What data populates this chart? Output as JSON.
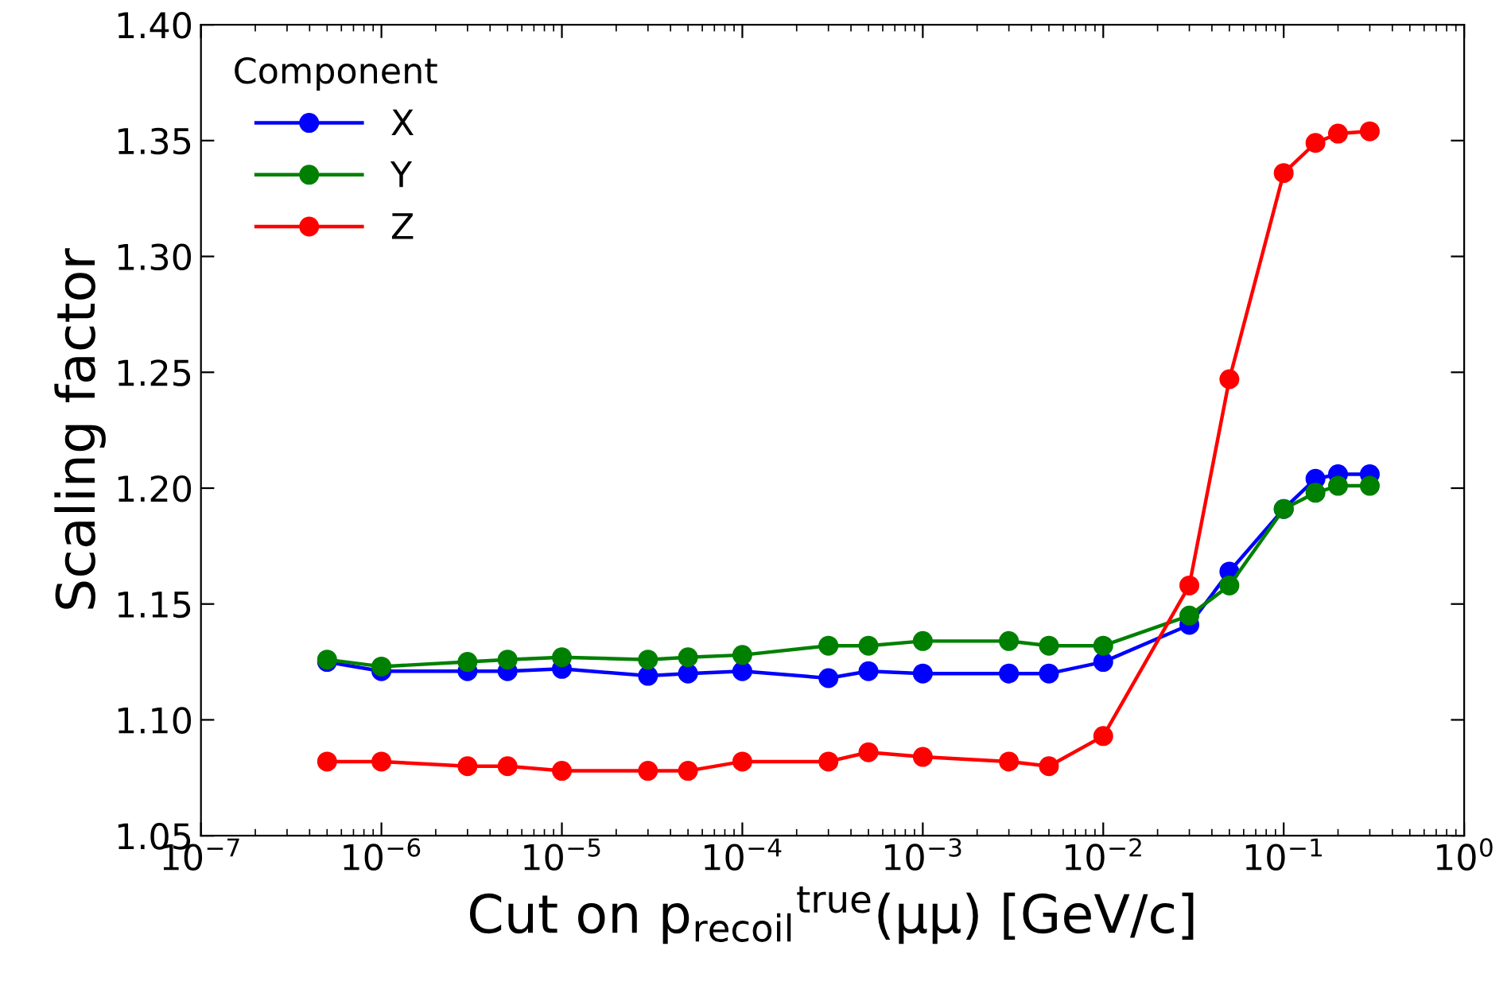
{
  "chart_data": {
    "type": "line",
    "xlabel": "Cut on p$_{recoil}$$^{true}$(μμ) [GeV/c]",
    "ylabel": "Scaling factor",
    "legend_title": "Component",
    "x": [
      5e-07,
      1e-06,
      3e-06,
      5e-06,
      1e-05,
      3e-05,
      5e-05,
      0.0001,
      0.0003,
      0.0005,
      0.001,
      0.003,
      0.005,
      0.01,
      0.03,
      0.05,
      0.1,
      0.15,
      0.2,
      0.3
    ],
    "series": [
      {
        "name": "X",
        "color": "#0000ff",
        "values": [
          1.125,
          1.121,
          1.121,
          1.121,
          1.122,
          1.119,
          1.12,
          1.121,
          1.118,
          1.121,
          1.12,
          1.12,
          1.12,
          1.125,
          1.141,
          1.164,
          1.191,
          1.204,
          1.206,
          1.206
        ]
      },
      {
        "name": "Y",
        "color": "#008000",
        "values": [
          1.126,
          1.123,
          1.125,
          1.126,
          1.127,
          1.126,
          1.127,
          1.128,
          1.132,
          1.132,
          1.134,
          1.134,
          1.132,
          1.132,
          1.145,
          1.158,
          1.191,
          1.198,
          1.201,
          1.201
        ]
      },
      {
        "name": "Z",
        "color": "#ff0000",
        "values": [
          1.082,
          1.082,
          1.08,
          1.08,
          1.078,
          1.078,
          1.078,
          1.082,
          1.082,
          1.086,
          1.084,
          1.082,
          1.08,
          1.093,
          1.158,
          1.247,
          1.336,
          1.349,
          1.353,
          1.354
        ]
      }
    ],
    "log": "x",
    "xlim": [
      1e-07,
      1
    ],
    "xticks": [
      {
        "value": 1e-07,
        "label": "10$^{−7}$"
      },
      {
        "value": 1e-06,
        "label": "10$^{−6}$"
      },
      {
        "value": 1e-05,
        "label": "10$^{−5}$"
      },
      {
        "value": 0.0001,
        "label": "10$^{−4}$"
      },
      {
        "value": 0.001,
        "label": "10$^{−3}$"
      },
      {
        "value": 0.01,
        "label": "10$^{−2}$"
      },
      {
        "value": 0.1,
        "label": "10$^{−1}$"
      },
      {
        "value": 1,
        "label": "10$^{0}$"
      }
    ],
    "ylim": [
      1.05,
      1.4
    ],
    "yticks": [
      {
        "value": 1.05,
        "label": "1.05"
      },
      {
        "value": 1.1,
        "label": "1.10"
      },
      {
        "value": 1.15,
        "label": "1.15"
      },
      {
        "value": 1.2,
        "label": "1.20"
      },
      {
        "value": 1.25,
        "label": "1.25"
      },
      {
        "value": 1.3,
        "label": "1.30"
      },
      {
        "value": 1.35,
        "label": "1.35"
      },
      {
        "value": 1.4,
        "label": "1.40"
      }
    ],
    "legend": "top left",
    "marker": "circle",
    "line_style": "solid",
    "grid": false
  }
}
